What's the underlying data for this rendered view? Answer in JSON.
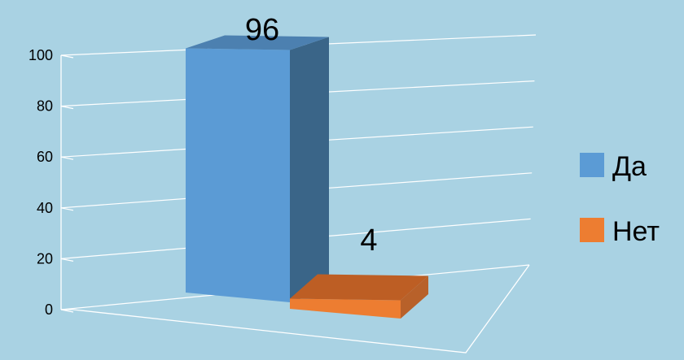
{
  "chart_data": {
    "type": "bar",
    "title": "",
    "xlabel": "",
    "ylabel": "",
    "categories": [
      ""
    ],
    "series": [
      {
        "name": "Да",
        "values": [
          96
        ],
        "color": "#5B9BD5",
        "side_color": "#3A6588",
        "top_color": "#4C80B0"
      },
      {
        "name": "Нет",
        "values": [
          4
        ],
        "color": "#ED7D31",
        "side_color": "#B8612A",
        "top_color": "#BD5E24"
      }
    ],
    "ylim": [
      0,
      100
    ],
    "yticks": [
      0,
      20,
      40,
      60,
      80,
      100
    ],
    "tick_labels": [
      "0",
      "20",
      "40",
      "60",
      "80",
      "100"
    ],
    "data_labels": [
      "96",
      "4"
    ],
    "grid": true,
    "legend_position": "right",
    "background": "#A9D2E3",
    "gridline_color": "#FFFFFF",
    "style": "3d-column"
  }
}
